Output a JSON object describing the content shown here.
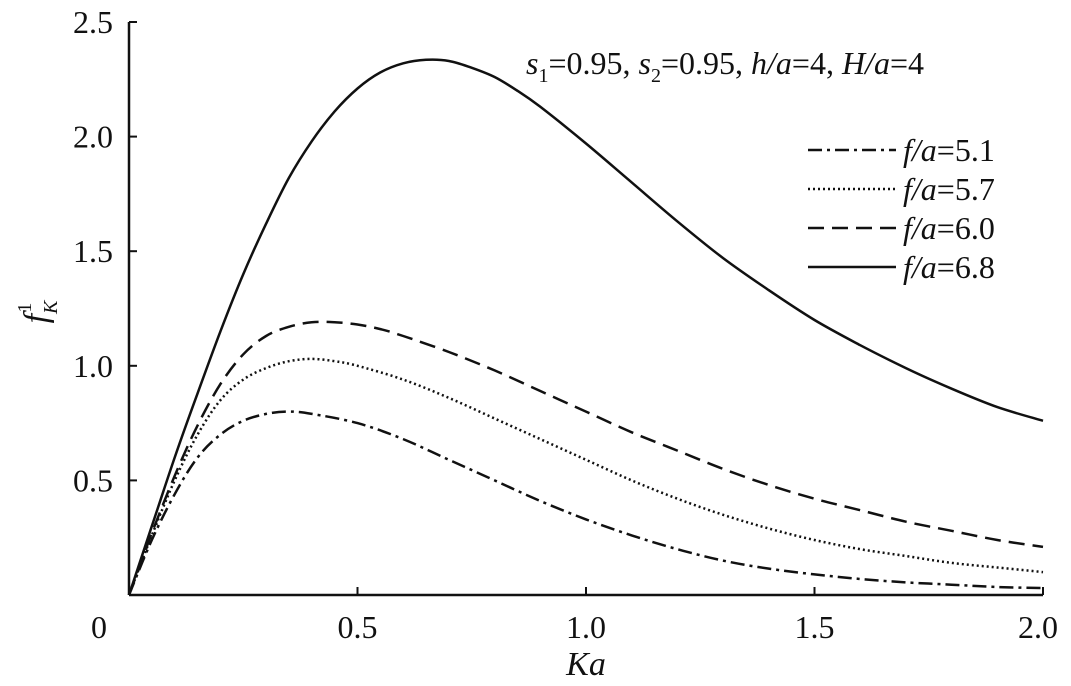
{
  "chart_data": {
    "type": "line",
    "xlabel": "Ka",
    "ylabel": {
      "base": "f",
      "sub": "K",
      "sup": "1"
    },
    "xlim": [
      0,
      2.0
    ],
    "ylim": [
      0,
      2.5
    ],
    "xticks": [
      "0",
      "0.5",
      "1.0",
      "1.5",
      "2.0"
    ],
    "yticks": [
      "0.5",
      "1.0",
      "1.5",
      "2.0",
      "2.5"
    ],
    "annotation": {
      "s1": {
        "sym": "s",
        "sub": "1",
        "val": "=0.95, "
      },
      "s2": {
        "sym": "s",
        "sub": "2",
        "val": "=0.95, "
      },
      "h": {
        "sym": "h/a",
        "val": "=4, "
      },
      "H": {
        "sym": "H/a",
        "val": "=4"
      }
    },
    "legend_position": "upper-right",
    "series": [
      {
        "name": "f/a=5.1",
        "label_sym": "f/a",
        "label_val": "=5.1",
        "style": "dashdot",
        "x": [
          0,
          0.05,
          0.1,
          0.15,
          0.2,
          0.25,
          0.3,
          0.35,
          0.4,
          0.5,
          0.6,
          0.7,
          0.8,
          0.9,
          1.0,
          1.1,
          1.2,
          1.3,
          1.4,
          1.5,
          1.6,
          1.7,
          1.8,
          1.9,
          2.0
        ],
        "y": [
          0,
          0.24,
          0.44,
          0.6,
          0.7,
          0.76,
          0.79,
          0.8,
          0.79,
          0.75,
          0.68,
          0.59,
          0.5,
          0.41,
          0.33,
          0.26,
          0.2,
          0.15,
          0.115,
          0.09,
          0.07,
          0.055,
          0.045,
          0.035,
          0.03
        ]
      },
      {
        "name": "f/a=5.7",
        "label_sym": "f/a",
        "label_val": "=5.7",
        "style": "dotted",
        "x": [
          0,
          0.05,
          0.1,
          0.15,
          0.2,
          0.25,
          0.3,
          0.35,
          0.4,
          0.45,
          0.5,
          0.6,
          0.7,
          0.8,
          0.9,
          1.0,
          1.1,
          1.2,
          1.3,
          1.4,
          1.5,
          1.6,
          1.7,
          1.8,
          1.9,
          2.0
        ],
        "y": [
          0,
          0.26,
          0.5,
          0.7,
          0.85,
          0.94,
          0.99,
          1.02,
          1.03,
          1.02,
          1.0,
          0.94,
          0.86,
          0.77,
          0.68,
          0.59,
          0.5,
          0.42,
          0.35,
          0.29,
          0.24,
          0.2,
          0.17,
          0.14,
          0.12,
          0.1
        ]
      },
      {
        "name": "f/a=6.0",
        "label_sym": "f/a",
        "label_val": "=6.0",
        "style": "dashed",
        "x": [
          0,
          0.05,
          0.1,
          0.15,
          0.2,
          0.25,
          0.3,
          0.35,
          0.4,
          0.45,
          0.5,
          0.55,
          0.6,
          0.7,
          0.8,
          0.9,
          1.0,
          1.1,
          1.2,
          1.3,
          1.4,
          1.5,
          1.6,
          1.7,
          1.8,
          1.9,
          2.0
        ],
        "y": [
          0,
          0.27,
          0.52,
          0.74,
          0.92,
          1.05,
          1.13,
          1.17,
          1.19,
          1.19,
          1.18,
          1.16,
          1.13,
          1.06,
          0.98,
          0.89,
          0.8,
          0.71,
          0.63,
          0.55,
          0.48,
          0.42,
          0.37,
          0.32,
          0.28,
          0.24,
          0.21
        ]
      },
      {
        "name": "f/a=6.8",
        "label_sym": "f/a",
        "label_val": "=6.8",
        "style": "solid",
        "x": [
          0,
          0.05,
          0.1,
          0.15,
          0.2,
          0.25,
          0.3,
          0.35,
          0.4,
          0.45,
          0.5,
          0.55,
          0.6,
          0.65,
          0.7,
          0.75,
          0.8,
          0.85,
          0.9,
          1.0,
          1.1,
          1.2,
          1.3,
          1.4,
          1.5,
          1.6,
          1.7,
          1.8,
          1.9,
          2.0
        ],
        "y": [
          0,
          0.3,
          0.6,
          0.88,
          1.15,
          1.4,
          1.62,
          1.82,
          1.98,
          2.11,
          2.21,
          2.28,
          2.32,
          2.335,
          2.33,
          2.3,
          2.26,
          2.2,
          2.13,
          1.97,
          1.8,
          1.63,
          1.47,
          1.33,
          1.2,
          1.09,
          0.99,
          0.9,
          0.82,
          0.76
        ]
      }
    ]
  }
}
